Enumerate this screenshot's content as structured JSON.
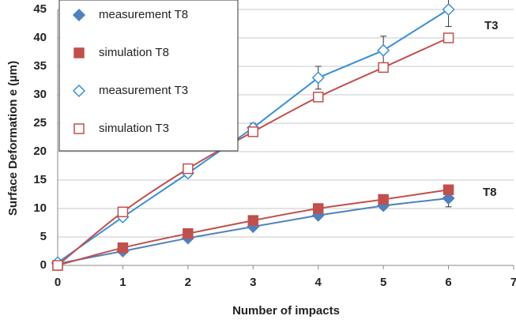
{
  "chart_data": {
    "type": "line",
    "x_label": "Number of impacts",
    "y_label": "Surface Deformation e (µm)",
    "x": [
      0,
      1,
      2,
      3,
      4,
      5,
      6
    ],
    "series": [
      {
        "name": "measurement T8",
        "color": "#4f81bd",
        "marker": "diamond",
        "filled": true,
        "smooth": false,
        "values": [
          0.3,
          2.5,
          4.8,
          6.8,
          8.8,
          10.5,
          11.8
        ],
        "errors": [
          0.2,
          0.3,
          0.3,
          0.4,
          0.5,
          0.6,
          1.5
        ]
      },
      {
        "name": "simulation T8",
        "color": "#c0504d",
        "marker": "square",
        "filled": true,
        "smooth": true,
        "values": [
          0,
          3.1,
          5.6,
          7.9,
          10,
          11.6,
          13.3
        ]
      },
      {
        "name": "measurement T3",
        "color": "#3a8fd6",
        "marker": "diamond",
        "filled": false,
        "smooth": false,
        "values": [
          0.5,
          8.5,
          16.2,
          24.2,
          33,
          37.8,
          45
        ],
        "errors": [
          0.3,
          0.5,
          0.6,
          0.8,
          2,
          2.5,
          3
        ]
      },
      {
        "name": "simulation T3",
        "color": "#c0504d",
        "marker": "square",
        "filled": false,
        "smooth": true,
        "values": [
          0,
          9.4,
          17,
          23.5,
          29.6,
          34.8,
          40
        ]
      }
    ],
    "annotations": [
      "T3",
      "T8"
    ],
    "xlim": [
      0,
      7
    ],
    "xticks": [
      0,
      1,
      2,
      3,
      4,
      5,
      6,
      7
    ],
    "ylim": [
      0,
      45
    ],
    "yticks": [
      0,
      5,
      10,
      15,
      20,
      25,
      30,
      35,
      40,
      45
    ],
    "grid": true,
    "legend": "top-left"
  }
}
